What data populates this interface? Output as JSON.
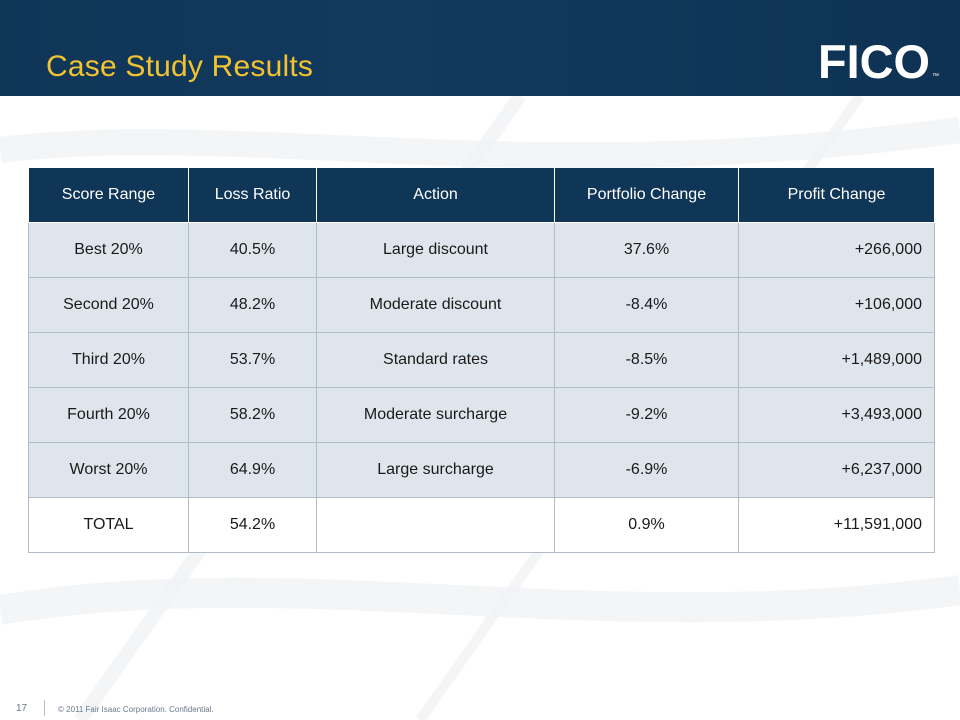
{
  "slide": {
    "title": "Case Study Results",
    "logo_text": "FICO",
    "page_number": "17",
    "copyright": "© 2011 Fair Isaac Corporation. Confidential."
  },
  "table": {
    "headers": [
      "Score Range",
      "Loss Ratio",
      "Action",
      "Portfolio Change",
      "Profit Change"
    ],
    "rows": [
      [
        "Best 20%",
        "40.5%",
        "Large discount",
        "37.6%",
        "+266,000"
      ],
      [
        "Second 20%",
        "48.2%",
        "Moderate discount",
        "-8.4%",
        "+106,000"
      ],
      [
        "Third 20%",
        "53.7%",
        "Standard rates",
        "-8.5%",
        "+1,489,000"
      ],
      [
        "Fourth 20%",
        "58.2%",
        "Moderate surcharge",
        "-9.2%",
        "+3,493,000"
      ],
      [
        "Worst 20%",
        "64.9%",
        "Large surcharge",
        "-6.9%",
        "+6,237,000"
      ],
      [
        "TOTAL",
        "54.2%",
        "",
        "0.9%",
        "+11,591,000"
      ]
    ]
  },
  "colors": {
    "header_bg": "#0f3557",
    "title": "#f2c230",
    "row_shade": "#dfe5ec"
  }
}
